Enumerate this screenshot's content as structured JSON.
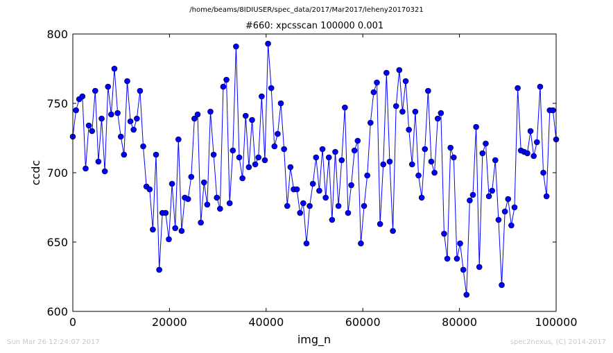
{
  "suptitle": "/home/beams/8IDIUSER/spec_data/2017/Mar2017/leheny20170321",
  "footer": {
    "timestamp": "Sun Mar 26 12:24:07 2017",
    "credit": "spec2nexus, (C) 2014-2017"
  },
  "chart_data": {
    "type": "line",
    "title": "#660: xpcsscan 100000 0.001",
    "xlabel": "img_n",
    "ylabel": "ccdc",
    "xlim": [
      0,
      100000
    ],
    "ylim": [
      600,
      800
    ],
    "xticks": [
      0,
      20000,
      40000,
      60000,
      80000,
      100000
    ],
    "yticks": [
      600,
      650,
      700,
      750,
      800
    ],
    "grid": false,
    "marker": "circle",
    "color": "#0000ff",
    "series": [
      {
        "values": [
          726,
          745,
          753,
          755,
          703,
          734,
          730,
          759,
          708,
          739,
          701,
          762,
          742,
          775,
          743,
          726,
          713,
          766,
          737,
          731,
          739,
          759,
          719,
          690,
          688,
          659,
          713,
          630,
          671,
          671,
          652,
          692,
          660,
          724,
          658,
          682,
          681,
          697,
          739,
          742,
          664,
          693,
          677,
          744,
          713,
          682,
          674,
          762,
          767,
          678,
          716,
          791,
          711,
          696,
          741,
          704,
          738,
          706,
          711,
          755,
          709,
          793,
          761,
          719,
          728,
          750,
          717,
          676,
          704,
          688,
          688,
          671,
          678,
          649,
          676,
          692,
          711,
          687,
          717,
          682,
          711,
          666,
          715,
          676,
          709,
          747,
          671,
          691,
          716,
          723,
          649,
          676,
          698,
          736,
          758,
          765,
          663,
          706,
          772,
          708,
          658,
          748,
          774,
          744,
          766,
          731,
          706,
          744,
          698,
          682,
          717,
          759,
          708,
          700,
          739,
          743,
          656,
          638,
          718,
          711,
          638,
          649,
          630,
          612,
          680,
          684,
          733,
          632,
          714,
          721,
          683,
          687,
          709,
          666,
          619,
          672,
          681,
          662,
          675,
          761,
          716,
          715,
          714,
          730,
          712,
          722,
          762,
          700,
          683,
          745,
          745,
          724
        ]
      }
    ]
  }
}
